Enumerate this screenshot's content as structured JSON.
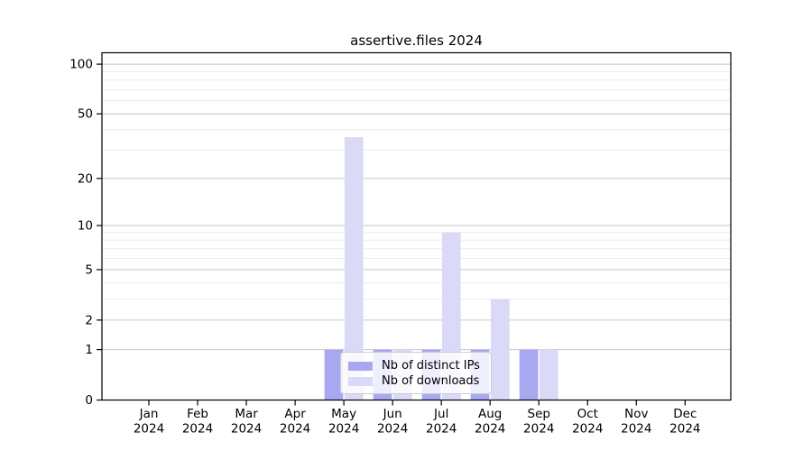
{
  "title": "assertive.files 2024",
  "chart_data": {
    "type": "bar",
    "title": "assertive.files 2024",
    "categories": [
      "Jan",
      "Feb",
      "Mar",
      "Apr",
      "May",
      "Jun",
      "Jul",
      "Aug",
      "Sep",
      "Oct",
      "Nov",
      "Dec"
    ],
    "year_label": "2024",
    "series": [
      {
        "name": "Nb of distinct IPs",
        "color": "#a8a8f0",
        "values": [
          0,
          0,
          0,
          0,
          1,
          1,
          1,
          1,
          1,
          0,
          0,
          0
        ]
      },
      {
        "name": "Nb of downloads",
        "color": "#dadaf8",
        "values": [
          0,
          0,
          0,
          0,
          36,
          1,
          9,
          3,
          1,
          0,
          0,
          0
        ]
      }
    ],
    "y_axis": {
      "scale": "log10(value+1)",
      "tick_values": [
        0,
        1,
        2,
        5,
        10,
        20,
        50,
        100
      ],
      "minor_gridline_values": [
        3,
        4,
        6,
        7,
        8,
        9,
        30,
        40,
        60,
        70,
        80,
        90
      ],
      "ylim": [
        0,
        117
      ]
    },
    "grid": true,
    "legend_position": "lower center inside plot",
    "colors": {
      "background": "#ffffff",
      "axis": "#000000",
      "major_grid": "#c6c6c6",
      "minor_grid": "#ebebeb",
      "text": "#000000"
    }
  },
  "legend": {
    "items": [
      {
        "label": "Nb of distinct IPs",
        "color": "#a8a8f0"
      },
      {
        "label": "Nb of downloads",
        "color": "#dadaf8"
      }
    ]
  }
}
